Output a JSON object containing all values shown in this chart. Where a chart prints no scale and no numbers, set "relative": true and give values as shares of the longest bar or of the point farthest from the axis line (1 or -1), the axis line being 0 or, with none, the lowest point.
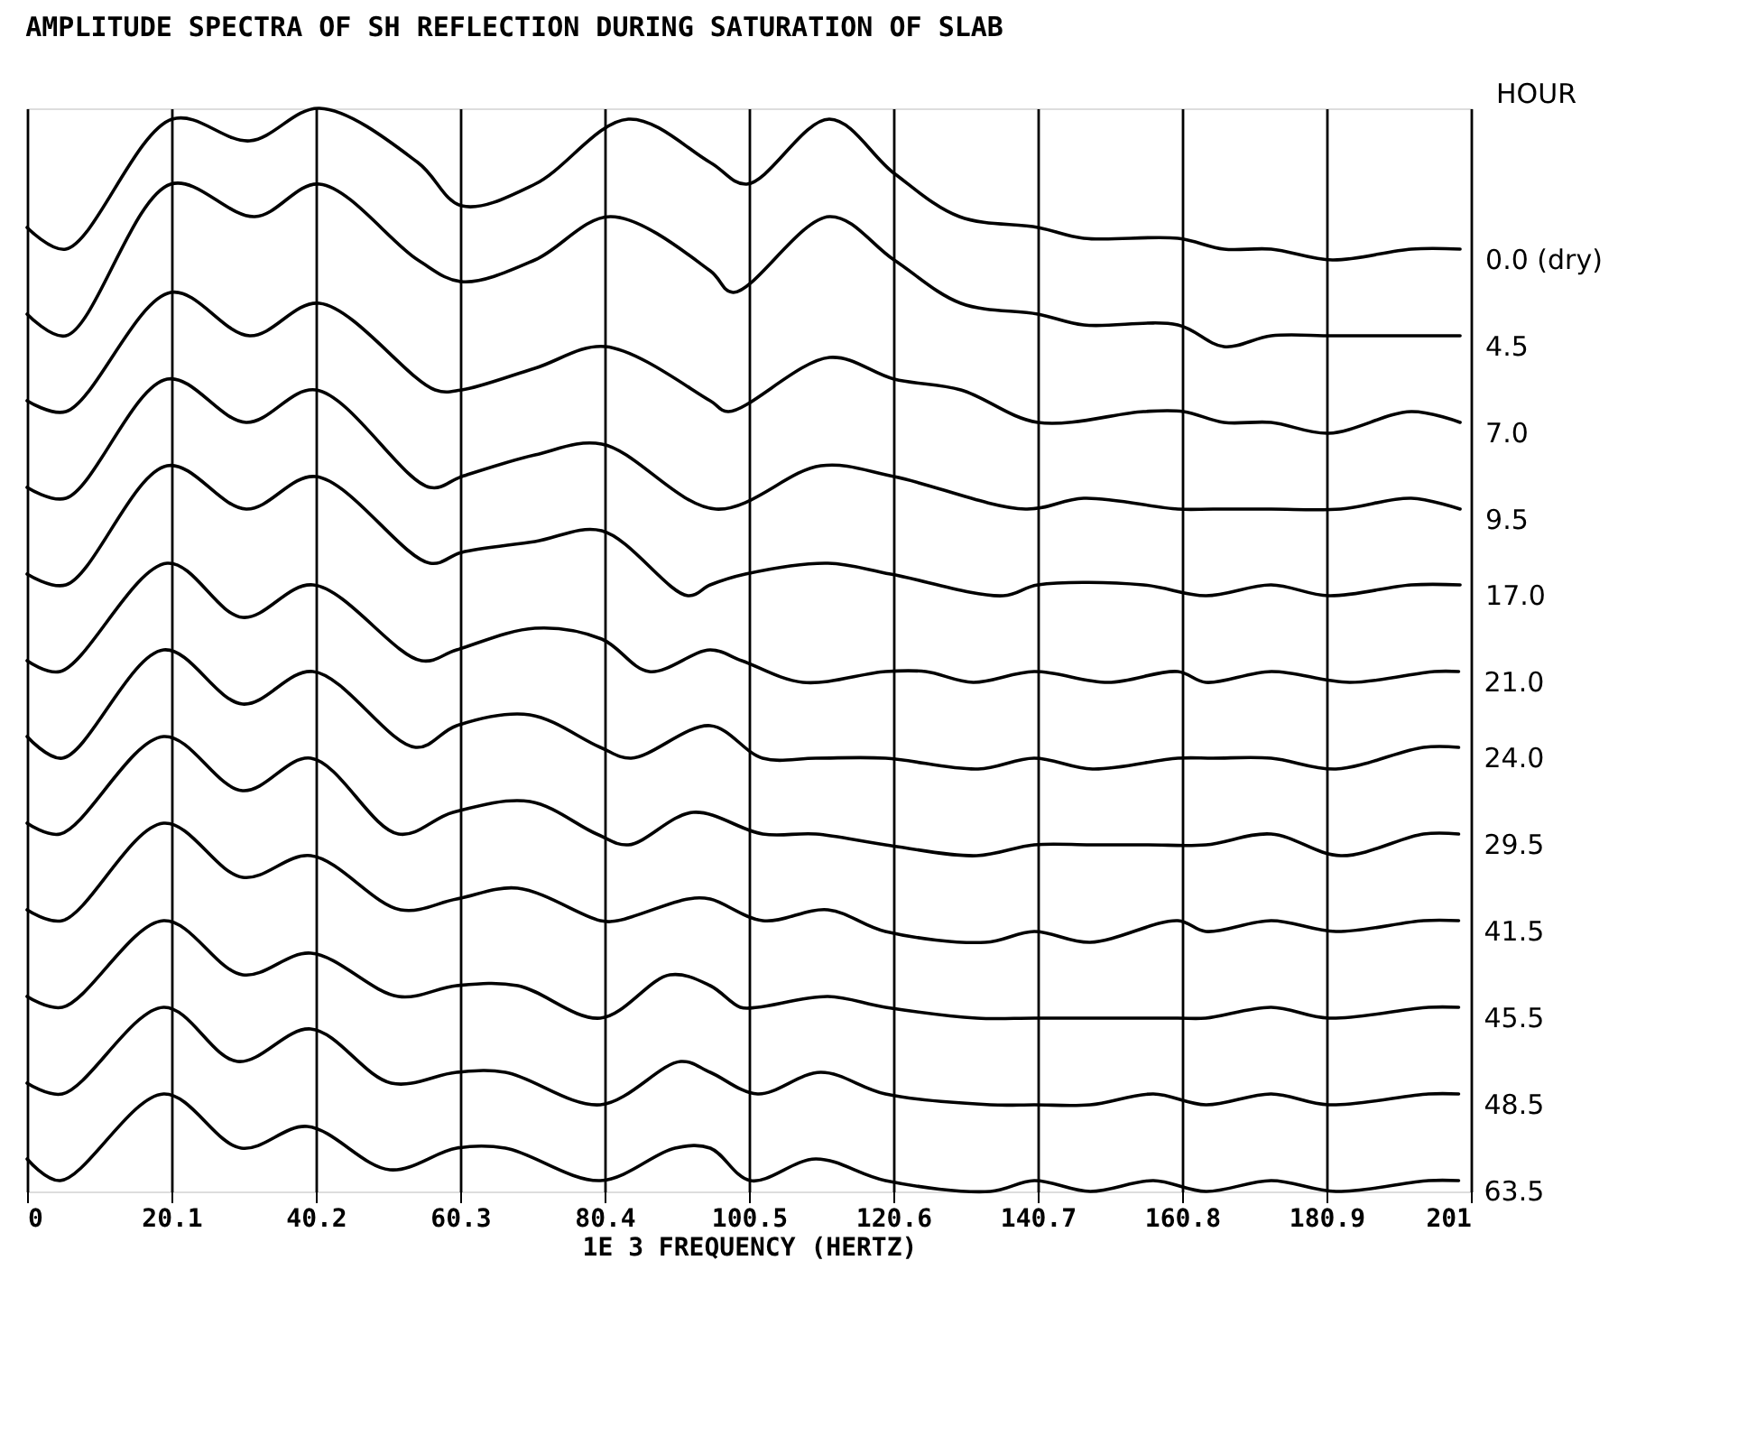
{
  "chart_data": {
    "type": "line",
    "title": "AMPLITUDE SPECTRA OF SH REFLECTION DURING SATURATION OF SLAB",
    "xlabel": "1E 3 FREQUENCY (HERTZ)",
    "legend_title": "HOUR",
    "relative": true,
    "grid": "x",
    "xlim": [
      0,
      201
    ],
    "xticks": [
      0,
      20.1,
      40.2,
      60.3,
      80.4,
      100.5,
      120.6,
      140.7,
      160.8,
      180.9,
      201
    ],
    "series": [
      {
        "name": "0.0 (dry)",
        "color": "#000000",
        "x": [
          0,
          5.4,
          20.2,
          31.0,
          40.7,
          54.4,
          60.5,
          70.7,
          83.7,
          95.1,
          100.2,
          111.7,
          120.7,
          129.8,
          140.7,
          147.1,
          160.2,
          166.6,
          173.2,
          181.7,
          192.7,
          199.5
        ],
        "values": [
          0.89,
          0.87,
          0.99,
          0.97,
          1.0,
          0.95,
          0.91,
          0.93,
          0.99,
          0.95,
          0.93,
          0.99,
          0.94,
          0.9,
          0.89,
          0.88,
          0.88,
          0.87,
          0.87,
          0.86,
          0.87,
          0.87
        ]
      },
      {
        "name": "4.5",
        "color": "#000000",
        "x": [
          0,
          5.4,
          20.0,
          31.7,
          40.7,
          54.4,
          60.5,
          70.7,
          81.2,
          95.1,
          98.3,
          111.7,
          120.7,
          130.0,
          140.7,
          147.1,
          160.2,
          166.6,
          173.2,
          181.7,
          192.7,
          199.5
        ],
        "values": [
          0.81,
          0.79,
          0.93,
          0.9,
          0.93,
          0.86,
          0.84,
          0.86,
          0.9,
          0.85,
          0.83,
          0.9,
          0.86,
          0.82,
          0.81,
          0.8,
          0.8,
          0.78,
          0.79,
          0.79,
          0.79,
          0.79
        ]
      },
      {
        "name": "7.0",
        "color": "#000000",
        "x": [
          0,
          5.4,
          20.0,
          31.0,
          40.7,
          56.8,
          60.5,
          70.7,
          80.5,
          95.1,
          97.6,
          111.7,
          120.7,
          130.0,
          140.7,
          155.4,
          161.0,
          166.6,
          173.2,
          181.2,
          192.7,
          199.5
        ],
        "values": [
          0.73,
          0.72,
          0.83,
          0.79,
          0.82,
          0.74,
          0.74,
          0.76,
          0.78,
          0.73,
          0.72,
          0.77,
          0.75,
          0.74,
          0.71,
          0.72,
          0.72,
          0.71,
          0.71,
          0.7,
          0.72,
          0.71
        ]
      },
      {
        "name": "9.5",
        "color": "#000000",
        "x": [
          0,
          5.4,
          19.5,
          30.5,
          40.2,
          56.1,
          60.5,
          70.7,
          80.0,
          95.9,
          110.5,
          120.7,
          139.0,
          147.1,
          160.2,
          165.1,
          173.2,
          182.9,
          192.7,
          199.5
        ],
        "values": [
          0.65,
          0.64,
          0.75,
          0.71,
          0.74,
          0.65,
          0.66,
          0.68,
          0.69,
          0.63,
          0.67,
          0.66,
          0.63,
          0.64,
          0.63,
          0.63,
          0.63,
          0.63,
          0.64,
          0.63
        ]
      },
      {
        "name": "17.0",
        "color": "#000000",
        "x": [
          0,
          5.4,
          19.5,
          30.5,
          40.2,
          56.1,
          60.5,
          70.7,
          80.0,
          92.0,
          95.1,
          100.0,
          111.5,
          120.2,
          135.9,
          140.7,
          155.4,
          164.1,
          173.2,
          181.2,
          192.7,
          199.5
        ],
        "values": [
          0.57,
          0.56,
          0.67,
          0.63,
          0.66,
          0.58,
          0.59,
          0.6,
          0.61,
          0.55,
          0.56,
          0.57,
          0.58,
          0.57,
          0.55,
          0.56,
          0.56,
          0.55,
          0.56,
          0.55,
          0.56,
          0.56
        ]
      },
      {
        "name": "21.0",
        "color": "#000000",
        "x": [
          0,
          4.6,
          19.5,
          30.0,
          39.8,
          54.9,
          59.8,
          70.7,
          80.0,
          86.6,
          95.1,
          99.5,
          108.0,
          119.5,
          125.1,
          131.7,
          140.2,
          150.5,
          160.2,
          164.1,
          173.2,
          184.1,
          195.9,
          199.3
        ],
        "values": [
          0.49,
          0.48,
          0.58,
          0.53,
          0.56,
          0.49,
          0.5,
          0.52,
          0.51,
          0.48,
          0.5,
          0.49,
          0.47,
          0.48,
          0.48,
          0.47,
          0.48,
          0.47,
          0.48,
          0.47,
          0.48,
          0.47,
          0.48,
          0.48
        ]
      },
      {
        "name": "24.0",
        "color": "#000000",
        "x": [
          0,
          4.9,
          19.0,
          30.0,
          39.8,
          54.1,
          59.8,
          70.0,
          79.8,
          84.1,
          95.1,
          102.4,
          109.8,
          119.5,
          132.4,
          140.2,
          148.3,
          160.2,
          165.1,
          173.2,
          182.2,
          194.4,
          199.3
        ],
        "values": [
          0.42,
          0.4,
          0.5,
          0.45,
          0.48,
          0.41,
          0.43,
          0.44,
          0.41,
          0.4,
          0.43,
          0.4,
          0.4,
          0.4,
          0.39,
          0.4,
          0.39,
          0.4,
          0.4,
          0.4,
          0.39,
          0.41,
          0.41
        ]
      },
      {
        "name": "29.5",
        "color": "#000000",
        "x": [
          0,
          4.6,
          19.0,
          30.0,
          39.5,
          51.7,
          59.3,
          70.0,
          79.3,
          83.7,
          92.7,
          102.4,
          109.8,
          119.5,
          132.2,
          140.2,
          148.0,
          156.1,
          164.1,
          173.2,
          182.9,
          194.4,
          199.3
        ],
        "values": [
          0.34,
          0.33,
          0.42,
          0.37,
          0.4,
          0.33,
          0.35,
          0.36,
          0.33,
          0.32,
          0.35,
          0.33,
          0.33,
          0.32,
          0.31,
          0.32,
          0.32,
          0.32,
          0.32,
          0.33,
          0.31,
          0.33,
          0.33
        ]
      },
      {
        "name": "41.5",
        "color": "#000000",
        "x": [
          0,
          4.9,
          19.0,
          30.0,
          39.5,
          52.0,
          59.8,
          68.3,
          79.8,
          82.2,
          92.0,
          95.1,
          102.4,
          111.5,
          119.5,
          133.4,
          140.2,
          148.0,
          160.2,
          164.1,
          173.2,
          182.2,
          194.4,
          199.3
        ],
        "values": [
          0.26,
          0.25,
          0.34,
          0.29,
          0.31,
          0.26,
          0.27,
          0.28,
          0.25,
          0.25,
          0.27,
          0.27,
          0.25,
          0.26,
          0.24,
          0.23,
          0.24,
          0.23,
          0.25,
          0.24,
          0.25,
          0.24,
          0.25,
          0.25
        ]
      },
      {
        "name": "45.5",
        "color": "#000000",
        "x": [
          0,
          4.9,
          19.0,
          30.0,
          39.5,
          51.7,
          59.8,
          68.3,
          79.8,
          89.5,
          95.1,
          99.3,
          101.7,
          111.5,
          119.5,
          132.2,
          140.2,
          152.0,
          160.2,
          164.1,
          173.2,
          181.2,
          195.1,
          199.3
        ],
        "values": [
          0.18,
          0.17,
          0.25,
          0.2,
          0.22,
          0.18,
          0.19,
          0.19,
          0.16,
          0.2,
          0.19,
          0.17,
          0.17,
          0.18,
          0.17,
          0.16,
          0.16,
          0.16,
          0.16,
          0.16,
          0.17,
          0.16,
          0.17,
          0.17
        ]
      },
      {
        "name": "48.5",
        "color": "#000000",
        "x": [
          0,
          4.9,
          19.0,
          29.3,
          39.5,
          50.7,
          59.8,
          66.6,
          79.8,
          91.0,
          95.1,
          101.7,
          110.5,
          119.5,
          134.1,
          140.2,
          148.0,
          156.8,
          164.1,
          173.2,
          181.2,
          195.1,
          199.3
        ],
        "values": [
          0.1,
          0.09,
          0.17,
          0.12,
          0.15,
          0.1,
          0.11,
          0.11,
          0.08,
          0.12,
          0.11,
          0.09,
          0.11,
          0.09,
          0.08,
          0.08,
          0.08,
          0.09,
          0.08,
          0.09,
          0.08,
          0.09,
          0.09
        ]
      },
      {
        "name": "63.5",
        "color": "#000000",
        "x": [
          0,
          4.6,
          19.0,
          29.8,
          39.0,
          50.5,
          59.8,
          66.6,
          79.8,
          90.2,
          95.1,
          100.7,
          109.8,
          119.5,
          134.1,
          140.2,
          148.0,
          156.8,
          164.1,
          173.2,
          182.2,
          195.1,
          199.3
        ],
        "values": [
          0.03,
          0.01,
          0.09,
          0.04,
          0.06,
          0.02,
          0.04,
          0.04,
          0.01,
          0.04,
          0.04,
          0.01,
          0.03,
          0.01,
          0.0,
          0.01,
          0.0,
          0.01,
          0.0,
          0.01,
          0.0,
          0.01,
          0.01
        ]
      }
    ]
  }
}
